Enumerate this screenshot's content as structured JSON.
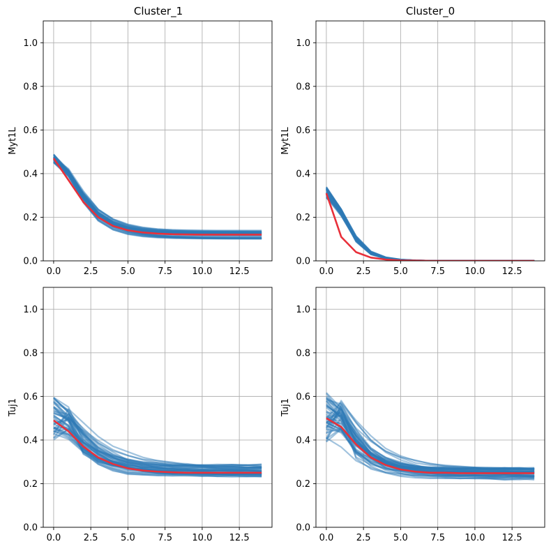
{
  "chart_data": [
    {
      "type": "line",
      "title": "Cluster_1",
      "xlabel": "",
      "ylabel": "Myt1L",
      "xlim": [
        -0.7,
        14.7
      ],
      "ylim": [
        0,
        1.1
      ],
      "xticks": [
        0.0,
        2.5,
        5.0,
        7.5,
        10.0,
        12.5
      ],
      "xtick_labels": [
        "0.0",
        "2.5",
        "5.0",
        "7.5",
        "10.0",
        "12.5"
      ],
      "yticks": [
        0.0,
        0.2,
        0.4,
        0.6,
        0.8,
        1.0
      ],
      "ytick_labels": [
        "0.0",
        "0.2",
        "0.4",
        "0.6",
        "0.8",
        "1.0"
      ],
      "grid": true,
      "x": [
        0,
        1,
        2,
        3,
        4,
        5,
        6,
        7,
        8,
        9,
        10,
        11,
        12,
        13,
        14
      ],
      "mean_series": {
        "name": "mean",
        "color": "#e8303a",
        "values": [
          0.47,
          0.37,
          0.27,
          0.2,
          0.16,
          0.14,
          0.13,
          0.125,
          0.122,
          0.121,
          0.12,
          0.12,
          0.12,
          0.12,
          0.12
        ]
      },
      "sample_series": {
        "color": "#2e7ab6",
        "count": 36,
        "start_range": [
          0.45,
          0.49
        ],
        "peak_range": [
          0.45,
          0.49
        ],
        "floor_range": [
          0.1,
          0.14
        ],
        "floor_jitter": 0.0,
        "decay_rate": [
          0.55,
          0.75
        ]
      }
    },
    {
      "type": "line",
      "title": "Cluster_0",
      "xlabel": "",
      "ylabel": "Myt1L",
      "xlim": [
        -0.7,
        14.7
      ],
      "ylim": [
        0,
        1.1
      ],
      "xticks": [
        0.0,
        2.5,
        5.0,
        7.5,
        10.0,
        12.5
      ],
      "xtick_labels": [
        "0.0",
        "2.5",
        "5.0",
        "7.5",
        "10.0",
        "12.5"
      ],
      "yticks": [
        0.0,
        0.2,
        0.4,
        0.6,
        0.8,
        1.0
      ],
      "ytick_labels": [
        "0.0",
        "0.2",
        "0.4",
        "0.6",
        "0.8",
        "1.0"
      ],
      "grid": true,
      "x": [
        0,
        1,
        2,
        3,
        4,
        5,
        6,
        7,
        8,
        9,
        10,
        11,
        12,
        13,
        14
      ],
      "mean_series": {
        "name": "mean",
        "color": "#e8303a",
        "values": [
          0.31,
          0.11,
          0.04,
          0.015,
          0.006,
          0.002,
          0.001,
          0,
          0,
          0,
          0,
          0,
          0,
          0,
          0
        ]
      },
      "sample_series": {
        "color": "#2e7ab6",
        "count": 36,
        "start_range": [
          0.29,
          0.34
        ],
        "peak_range": [
          0.29,
          0.34
        ],
        "floor_range": [
          0.0,
          0.0
        ],
        "floor_jitter": 0.0,
        "decay_rate": [
          0.95,
          1.1
        ]
      }
    },
    {
      "type": "line",
      "title": "",
      "xlabel": "",
      "ylabel": "Tuj1",
      "xlim": [
        -0.7,
        14.7
      ],
      "ylim": [
        0,
        1.1
      ],
      "xticks": [
        0.0,
        2.5,
        5.0,
        7.5,
        10.0,
        12.5
      ],
      "xtick_labels": [
        "0.0",
        "2.5",
        "5.0",
        "7.5",
        "10.0",
        "12.5"
      ],
      "yticks": [
        0.0,
        0.2,
        0.4,
        0.6,
        0.8,
        1.0
      ],
      "ytick_labels": [
        "0.0",
        "0.2",
        "0.4",
        "0.6",
        "0.8",
        "1.0"
      ],
      "grid": true,
      "x": [
        0,
        1,
        2,
        3,
        4,
        5,
        6,
        7,
        8,
        9,
        10,
        11,
        12,
        13,
        14
      ],
      "mean_series": {
        "name": "mean",
        "color": "#e8303a",
        "values": [
          0.49,
          0.44,
          0.37,
          0.32,
          0.29,
          0.27,
          0.26,
          0.255,
          0.252,
          0.25,
          0.25,
          0.25,
          0.25,
          0.25,
          0.25
        ]
      },
      "sample_series": {
        "color": "#2e7ab6",
        "count": 44,
        "start_range": [
          0.39,
          0.6
        ],
        "peak_range": [
          0.4,
          0.59
        ],
        "floor_range": [
          0.23,
          0.29
        ],
        "floor_jitter": 0.004,
        "decay_rate": [
          0.35,
          0.85
        ]
      }
    },
    {
      "type": "line",
      "title": "",
      "xlabel": "",
      "ylabel": "Tuj1",
      "xlim": [
        -0.7,
        14.7
      ],
      "ylim": [
        0,
        1.1
      ],
      "xticks": [
        0.0,
        2.5,
        5.0,
        7.5,
        10.0,
        12.5
      ],
      "xtick_labels": [
        "0.0",
        "2.5",
        "5.0",
        "7.5",
        "10.0",
        "12.5"
      ],
      "yticks": [
        0.0,
        0.2,
        0.4,
        0.6,
        0.8,
        1.0
      ],
      "ytick_labels": [
        "0.0",
        "0.2",
        "0.4",
        "0.6",
        "0.8",
        "1.0"
      ],
      "grid": true,
      "x": [
        0,
        1,
        2,
        3,
        4,
        5,
        6,
        7,
        8,
        9,
        10,
        11,
        12,
        13,
        14
      ],
      "mean_series": {
        "name": "mean",
        "color": "#e8303a",
        "values": [
          0.5,
          0.46,
          0.38,
          0.32,
          0.285,
          0.265,
          0.255,
          0.25,
          0.25,
          0.248,
          0.248,
          0.248,
          0.248,
          0.248,
          0.248
        ]
      },
      "sample_series": {
        "color": "#2e7ab6",
        "count": 48,
        "start_range": [
          0.38,
          0.62
        ],
        "peak_range": [
          0.4,
          0.66
        ],
        "floor_range": [
          0.22,
          0.27
        ],
        "floor_jitter": 0.004,
        "decay_rate": [
          0.35,
          0.85
        ]
      }
    }
  ]
}
